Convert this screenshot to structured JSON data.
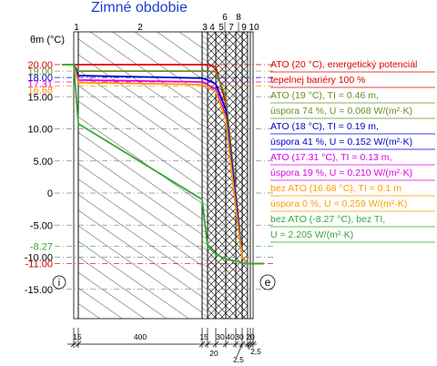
{
  "title": "Zimné obdobie",
  "axis_symbol": "θm (°C)",
  "side_labels": {
    "interior": "i",
    "exterior": "e"
  },
  "layer_numbers": [
    "1",
    "2",
    "3",
    "4",
    "5",
    "6",
    "7",
    "8",
    "9",
    "10"
  ],
  "dimension_labels": [
    "15",
    "400",
    "15",
    "30",
    "40",
    "30",
    "20",
    "20",
    "2,5",
    "2,5"
  ],
  "y_ticks": [
    {
      "label": "20.00",
      "color": "#cc0000"
    },
    {
      "label": "19.00",
      "color": "#6b8e23"
    },
    {
      "label": "18.00",
      "color": "#0000cc"
    },
    {
      "label": "17.31",
      "color": "#e000e0"
    },
    {
      "label": "16.68",
      "color": "#ff9900"
    },
    {
      "label": "15.00",
      "color": "#000000"
    },
    {
      "label": "10.00",
      "color": "#000000"
    },
    {
      "label": "5.00",
      "color": "#000000"
    },
    {
      "label": "0",
      "color": "#000000"
    },
    {
      "label": "-5.00",
      "color": "#000000"
    },
    {
      "label": "-8.27",
      "color": "#33aa33"
    },
    {
      "label": "-10.00",
      "color": "#000000"
    },
    {
      "label": "-11.00",
      "color": "#cc0000"
    },
    {
      "label": "-15.00",
      "color": "#000000"
    }
  ],
  "legend": [
    {
      "color": "#e00000",
      "lines": [
        "ATO (20 °C), energetický potenciál",
        "tepelnej bariéry 100 %"
      ]
    },
    {
      "color": "#6b8e23",
      "lines": [
        "ATO (19 °C), TI = 0.46 m,",
        "úspora 74 %, U = 0.068 W/(m²·K)"
      ]
    },
    {
      "color": "#0000cc",
      "lines": [
        "ATO (18 °C), TI = 0.19 m,",
        "úspora 41 %, U = 0.152 W/(m²·K)"
      ]
    },
    {
      "color": "#e000e0",
      "lines": [
        "ATO (17.31 °C), TI = 0.13 m,",
        "úspora 19 %, U = 0.210 W/(m²·K)"
      ]
    },
    {
      "color": "#ff9900",
      "lines": [
        "bez ATO (16.68 °C), TI = 0.1 m",
        "úspora 0 %, U = 0.259 W/(m²·K)"
      ]
    },
    {
      "color": "#33aa33",
      "lines": [
        "bez ATO (-8.27 °C), bez TI,",
        "U = 2.205 W/(m²·K)"
      ]
    }
  ],
  "chart_data": {
    "type": "line",
    "title": "Zimné obdobie",
    "ylabel": "θm (°C)",
    "ylim": [
      -15,
      20
    ],
    "series": [
      {
        "name": "ATO (20 °C), energetický potenciál tepelnej bariéry 100 %",
        "color": "#e00000",
        "points": [
          [
            0,
            20
          ],
          [
            1,
            20
          ],
          [
            2,
            20
          ],
          [
            3,
            20
          ],
          [
            4,
            19.6
          ],
          [
            5,
            14
          ],
          [
            6,
            0
          ],
          [
            7,
            -10
          ],
          [
            8,
            -11
          ],
          [
            9,
            -11
          ],
          [
            10,
            -11
          ]
        ]
      },
      {
        "name": "ATO (19 °C), TI = 0.46 m, úspora 74 %, U = 0.068 W/(m²·K)",
        "color": "#6b8e23",
        "points": [
          [
            0,
            20
          ],
          [
            1,
            19
          ],
          [
            2,
            19
          ],
          [
            3,
            19
          ],
          [
            4,
            18.9
          ],
          [
            5,
            15
          ],
          [
            6,
            0
          ],
          [
            7,
            -10
          ],
          [
            8,
            -11
          ],
          [
            9,
            -11
          ],
          [
            10,
            -11
          ]
        ]
      },
      {
        "name": "ATO (18 °C), TI = 0.19 m, úspora 41 %, U = 0.152 W/(m²·K)",
        "color": "#0000cc",
        "points": [
          [
            0,
            20
          ],
          [
            1,
            18.3
          ],
          [
            2,
            17.9
          ],
          [
            3,
            17.6
          ],
          [
            4,
            17
          ],
          [
            5,
            13
          ],
          [
            6,
            -1
          ],
          [
            7,
            -10
          ],
          [
            8,
            -11
          ],
          [
            9,
            -11
          ],
          [
            10,
            -11
          ]
        ]
      },
      {
        "name": "ATO (17.31 °C), TI = 0.13 m, úspora 19 %, U = 0.210 W/(m²·K)",
        "color": "#e000e0",
        "points": [
          [
            0,
            20
          ],
          [
            1,
            17.6
          ],
          [
            2,
            17.3
          ],
          [
            3,
            16.9
          ],
          [
            4,
            16.2
          ],
          [
            5,
            12
          ],
          [
            6,
            -2
          ],
          [
            7,
            -10
          ],
          [
            8,
            -11
          ],
          [
            9,
            -11
          ],
          [
            10,
            -11
          ]
        ]
      },
      {
        "name": "bez ATO (16.68 °C), TI = 0.1 m, úspora 0 %, U = 0.259 W/(m²·K)",
        "color": "#ff9900",
        "points": [
          [
            0,
            20
          ],
          [
            1,
            17.2
          ],
          [
            2,
            16.9
          ],
          [
            3,
            16.5
          ],
          [
            4,
            15.8
          ],
          [
            5,
            11.5
          ],
          [
            6,
            -2.5
          ],
          [
            7,
            -10
          ],
          [
            8,
            -11
          ],
          [
            9,
            -11
          ],
          [
            10,
            -11
          ]
        ]
      },
      {
        "name": "bez ATO (-8.27 °C), bez TI, U = 2.205 W/(m²·K)",
        "color": "#33aa33",
        "points": [
          [
            0,
            20
          ],
          [
            1,
            10.8
          ],
          [
            2,
            -1
          ],
          [
            3,
            -8.27
          ],
          [
            4,
            -9.5
          ],
          [
            5,
            -10.3
          ],
          [
            6,
            -10.6
          ],
          [
            7,
            -10.9
          ],
          [
            8,
            -11
          ],
          [
            9,
            -11
          ],
          [
            10,
            -11
          ]
        ]
      }
    ]
  }
}
